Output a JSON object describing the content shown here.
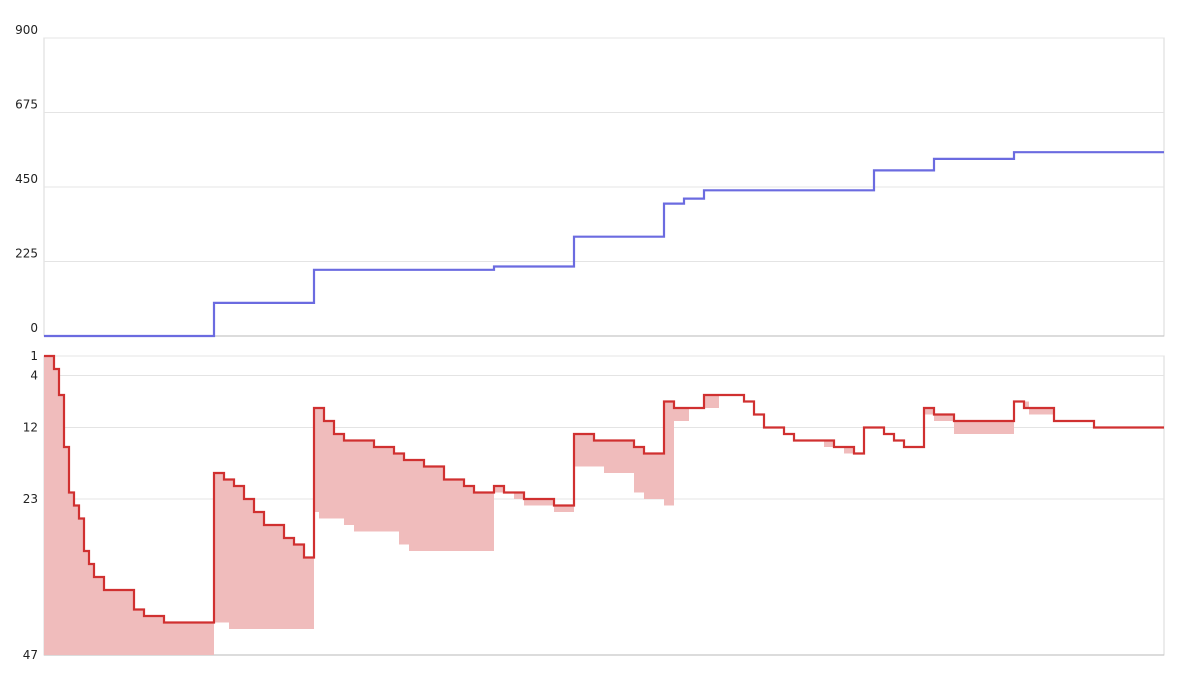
{
  "chart_data": [
    {
      "type": "line",
      "title": "",
      "xlabel": "",
      "ylabel": "",
      "ylim": [
        0,
        900
      ],
      "yticks": [
        0,
        225,
        450,
        675,
        900
      ],
      "grid": true,
      "step": true,
      "series": [
        {
          "color": "#6b6be0",
          "points": [
            [
              0,
              0
            ],
            [
              17,
              0
            ],
            [
              17,
              100
            ],
            [
              27,
              100
            ],
            [
              27,
              200
            ],
            [
              45,
              200
            ],
            [
              45,
              210
            ],
            [
              53,
              210
            ],
            [
              53,
              300
            ],
            [
              62,
              300
            ],
            [
              62,
              400
            ],
            [
              64,
              400
            ],
            [
              64,
              415
            ],
            [
              66,
              415
            ],
            [
              66,
              440
            ],
            [
              83,
              440
            ],
            [
              83,
              500
            ],
            [
              89,
              500
            ],
            [
              89,
              535
            ],
            [
              97,
              535
            ],
            [
              97,
              555
            ],
            [
              112,
              555
            ]
          ]
        }
      ]
    },
    {
      "type": "area",
      "title": "",
      "xlabel": "",
      "ylabel": "",
      "ylim": [
        1,
        47
      ],
      "y_inverted": true,
      "yticks": [
        1,
        4,
        12,
        23,
        47
      ],
      "grid": true,
      "step": true,
      "series": [
        {
          "color": "#d03030",
          "fill": "#f0bcbc",
          "line": [
            [
              0,
              1
            ],
            [
              1,
              1
            ],
            [
              1,
              3
            ],
            [
              1.5,
              3
            ],
            [
              1.5,
              7
            ],
            [
              2,
              7
            ],
            [
              2,
              15
            ],
            [
              2.5,
              15
            ],
            [
              2.5,
              22
            ],
            [
              3,
              22
            ],
            [
              3,
              24
            ],
            [
              3.5,
              24
            ],
            [
              3.5,
              26
            ],
            [
              4,
              26
            ],
            [
              4,
              31
            ],
            [
              4.5,
              31
            ],
            [
              4.5,
              33
            ],
            [
              5,
              33
            ],
            [
              5,
              35
            ],
            [
              6,
              35
            ],
            [
              6,
              37
            ],
            [
              9,
              37
            ],
            [
              9,
              40
            ],
            [
              10,
              40
            ],
            [
              10,
              41
            ],
            [
              12,
              41
            ],
            [
              12,
              42
            ],
            [
              17,
              42
            ],
            [
              17,
              19
            ],
            [
              18,
              19
            ],
            [
              18,
              20
            ],
            [
              19,
              20
            ],
            [
              19,
              21
            ],
            [
              20,
              21
            ],
            [
              20,
              23
            ],
            [
              21,
              23
            ],
            [
              21,
              25
            ],
            [
              22,
              25
            ],
            [
              22,
              27
            ],
            [
              24,
              27
            ],
            [
              24,
              29
            ],
            [
              25,
              29
            ],
            [
              25,
              30
            ],
            [
              26,
              30
            ],
            [
              26,
              32
            ],
            [
              27,
              32
            ],
            [
              27,
              9
            ],
            [
              28,
              9
            ],
            [
              28,
              11
            ],
            [
              29,
              11
            ],
            [
              29,
              13
            ],
            [
              30,
              13
            ],
            [
              30,
              14
            ],
            [
              33,
              14
            ],
            [
              33,
              15
            ],
            [
              35,
              15
            ],
            [
              35,
              16
            ],
            [
              36,
              16
            ],
            [
              36,
              17
            ],
            [
              38,
              17
            ],
            [
              38,
              18
            ],
            [
              40,
              18
            ],
            [
              40,
              20
            ],
            [
              42,
              20
            ],
            [
              42,
              21
            ],
            [
              43,
              21
            ],
            [
              43,
              22
            ],
            [
              45,
              22
            ],
            [
              45,
              21
            ],
            [
              46,
              21
            ],
            [
              46,
              22
            ],
            [
              48,
              22
            ],
            [
              48,
              23
            ],
            [
              51,
              23
            ],
            [
              51,
              24
            ],
            [
              53,
              24
            ],
            [
              53,
              13
            ],
            [
              55,
              13
            ],
            [
              55,
              14
            ],
            [
              59,
              14
            ],
            [
              59,
              15
            ],
            [
              60,
              15
            ],
            [
              60,
              16
            ],
            [
              62,
              16
            ],
            [
              62,
              8
            ],
            [
              63,
              8
            ],
            [
              63,
              9
            ],
            [
              66,
              9
            ],
            [
              66,
              7
            ],
            [
              70,
              7
            ],
            [
              70,
              8
            ],
            [
              71,
              8
            ],
            [
              71,
              10
            ],
            [
              72,
              10
            ],
            [
              72,
              12
            ],
            [
              74,
              12
            ],
            [
              74,
              13
            ],
            [
              75,
              13
            ],
            [
              75,
              14
            ],
            [
              79,
              14
            ],
            [
              79,
              15
            ],
            [
              81,
              15
            ],
            [
              81,
              16
            ],
            [
              82,
              16
            ],
            [
              82,
              12
            ],
            [
              84,
              12
            ],
            [
              84,
              13
            ],
            [
              85,
              13
            ],
            [
              85,
              14
            ],
            [
              86,
              14
            ],
            [
              86,
              15
            ],
            [
              88,
              15
            ],
            [
              88,
              9
            ],
            [
              89,
              9
            ],
            [
              89,
              10
            ],
            [
              91,
              10
            ],
            [
              91,
              11
            ],
            [
              97,
              11
            ],
            [
              97,
              8
            ],
            [
              98,
              8
            ],
            [
              98,
              9
            ],
            [
              101,
              9
            ],
            [
              101,
              11
            ],
            [
              105,
              11
            ],
            [
              105,
              12
            ],
            [
              112,
              12
            ]
          ],
          "band": [
            [
              0,
              47
            ],
            [
              17,
              47
            ],
            [
              17,
              42
            ],
            [
              18.5,
              42
            ],
            [
              18.5,
              43
            ],
            [
              27,
              43
            ],
            [
              27,
              25
            ],
            [
              27.5,
              25
            ],
            [
              27.5,
              26
            ],
            [
              30,
              26
            ],
            [
              30,
              27
            ],
            [
              31,
              27
            ],
            [
              31,
              28
            ],
            [
              35.5,
              28
            ],
            [
              35.5,
              30
            ],
            [
              36.5,
              30
            ],
            [
              36.5,
              31
            ],
            [
              45,
              31
            ],
            [
              45,
              22
            ],
            [
              47,
              22
            ],
            [
              47,
              23
            ],
            [
              48,
              23
            ],
            [
              48,
              24
            ],
            [
              51,
              24
            ],
            [
              51,
              25
            ],
            [
              53,
              25
            ],
            [
              53,
              18
            ],
            [
              56,
              18
            ],
            [
              56,
              19
            ],
            [
              59,
              19
            ],
            [
              59,
              22
            ],
            [
              60,
              22
            ],
            [
              60,
              23
            ],
            [
              62,
              23
            ],
            [
              62,
              24
            ],
            [
              63,
              24
            ],
            [
              63,
              11
            ],
            [
              64.5,
              11
            ],
            [
              64.5,
              9
            ],
            [
              67.5,
              9
            ],
            [
              67.5,
              7
            ],
            [
              70,
              7
            ],
            [
              70,
              8
            ],
            [
              71,
              8
            ],
            [
              71,
              10
            ],
            [
              72,
              10
            ],
            [
              72,
              12
            ],
            [
              74,
              12
            ],
            [
              74,
              13
            ],
            [
              75,
              13
            ],
            [
              75,
              14
            ],
            [
              78,
              14
            ],
            [
              78,
              15
            ],
            [
              80,
              15
            ],
            [
              80,
              16
            ],
            [
              81,
              16
            ],
            [
              81,
              16
            ],
            [
              82,
              16
            ],
            [
              82,
              12
            ],
            [
              84,
              12
            ],
            [
              84,
              13
            ],
            [
              85,
              13
            ],
            [
              85,
              14
            ],
            [
              86,
              14
            ],
            [
              86,
              15
            ],
            [
              88,
              15
            ],
            [
              88,
              10
            ],
            [
              89,
              10
            ],
            [
              89,
              11
            ],
            [
              91,
              11
            ],
            [
              91,
              13
            ],
            [
              97,
              13
            ],
            [
              97,
              8
            ],
            [
              98.5,
              8
            ],
            [
              98.5,
              10
            ],
            [
              101,
              10
            ],
            [
              101,
              11
            ],
            [
              105,
              11
            ],
            [
              105,
              12
            ],
            [
              112,
              12
            ]
          ]
        }
      ]
    }
  ]
}
